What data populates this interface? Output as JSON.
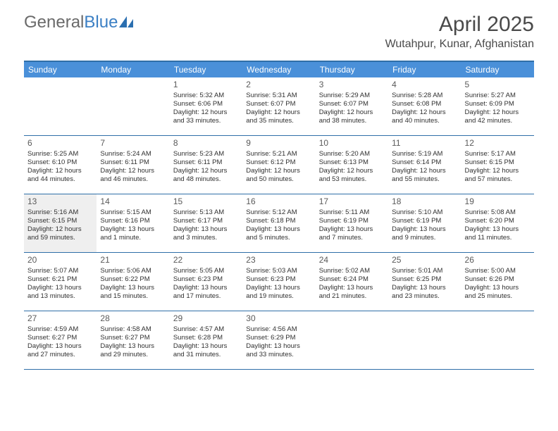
{
  "brand": {
    "part1": "General",
    "part2": "Blue"
  },
  "title": "April 2025",
  "location": "Wutahpur, Kunar, Afghanistan",
  "colors": {
    "header_bar": "#4a90d9",
    "border": "#2f6fa8",
    "shaded": "#efefef",
    "text": "#303030",
    "logo_gray": "#6a6a6a",
    "logo_blue": "#3b7fc4"
  },
  "weekdays": [
    "Sunday",
    "Monday",
    "Tuesday",
    "Wednesday",
    "Thursday",
    "Friday",
    "Saturday"
  ],
  "weeks": [
    [
      {
        "empty": true
      },
      {
        "empty": true
      },
      {
        "num": "1",
        "sunrise": "Sunrise: 5:32 AM",
        "sunset": "Sunset: 6:06 PM",
        "daylight": "Daylight: 12 hours and 33 minutes."
      },
      {
        "num": "2",
        "sunrise": "Sunrise: 5:31 AM",
        "sunset": "Sunset: 6:07 PM",
        "daylight": "Daylight: 12 hours and 35 minutes."
      },
      {
        "num": "3",
        "sunrise": "Sunrise: 5:29 AM",
        "sunset": "Sunset: 6:07 PM",
        "daylight": "Daylight: 12 hours and 38 minutes."
      },
      {
        "num": "4",
        "sunrise": "Sunrise: 5:28 AM",
        "sunset": "Sunset: 6:08 PM",
        "daylight": "Daylight: 12 hours and 40 minutes."
      },
      {
        "num": "5",
        "sunrise": "Sunrise: 5:27 AM",
        "sunset": "Sunset: 6:09 PM",
        "daylight": "Daylight: 12 hours and 42 minutes."
      }
    ],
    [
      {
        "num": "6",
        "sunrise": "Sunrise: 5:25 AM",
        "sunset": "Sunset: 6:10 PM",
        "daylight": "Daylight: 12 hours and 44 minutes."
      },
      {
        "num": "7",
        "sunrise": "Sunrise: 5:24 AM",
        "sunset": "Sunset: 6:11 PM",
        "daylight": "Daylight: 12 hours and 46 minutes."
      },
      {
        "num": "8",
        "sunrise": "Sunrise: 5:23 AM",
        "sunset": "Sunset: 6:11 PM",
        "daylight": "Daylight: 12 hours and 48 minutes."
      },
      {
        "num": "9",
        "sunrise": "Sunrise: 5:21 AM",
        "sunset": "Sunset: 6:12 PM",
        "daylight": "Daylight: 12 hours and 50 minutes."
      },
      {
        "num": "10",
        "sunrise": "Sunrise: 5:20 AM",
        "sunset": "Sunset: 6:13 PM",
        "daylight": "Daylight: 12 hours and 53 minutes."
      },
      {
        "num": "11",
        "sunrise": "Sunrise: 5:19 AM",
        "sunset": "Sunset: 6:14 PM",
        "daylight": "Daylight: 12 hours and 55 minutes."
      },
      {
        "num": "12",
        "sunrise": "Sunrise: 5:17 AM",
        "sunset": "Sunset: 6:15 PM",
        "daylight": "Daylight: 12 hours and 57 minutes."
      }
    ],
    [
      {
        "num": "13",
        "shaded": true,
        "sunrise": "Sunrise: 5:16 AM",
        "sunset": "Sunset: 6:15 PM",
        "daylight": "Daylight: 12 hours and 59 minutes."
      },
      {
        "num": "14",
        "sunrise": "Sunrise: 5:15 AM",
        "sunset": "Sunset: 6:16 PM",
        "daylight": "Daylight: 13 hours and 1 minute."
      },
      {
        "num": "15",
        "sunrise": "Sunrise: 5:13 AM",
        "sunset": "Sunset: 6:17 PM",
        "daylight": "Daylight: 13 hours and 3 minutes."
      },
      {
        "num": "16",
        "sunrise": "Sunrise: 5:12 AM",
        "sunset": "Sunset: 6:18 PM",
        "daylight": "Daylight: 13 hours and 5 minutes."
      },
      {
        "num": "17",
        "sunrise": "Sunrise: 5:11 AM",
        "sunset": "Sunset: 6:19 PM",
        "daylight": "Daylight: 13 hours and 7 minutes."
      },
      {
        "num": "18",
        "sunrise": "Sunrise: 5:10 AM",
        "sunset": "Sunset: 6:19 PM",
        "daylight": "Daylight: 13 hours and 9 minutes."
      },
      {
        "num": "19",
        "sunrise": "Sunrise: 5:08 AM",
        "sunset": "Sunset: 6:20 PM",
        "daylight": "Daylight: 13 hours and 11 minutes."
      }
    ],
    [
      {
        "num": "20",
        "sunrise": "Sunrise: 5:07 AM",
        "sunset": "Sunset: 6:21 PM",
        "daylight": "Daylight: 13 hours and 13 minutes."
      },
      {
        "num": "21",
        "sunrise": "Sunrise: 5:06 AM",
        "sunset": "Sunset: 6:22 PM",
        "daylight": "Daylight: 13 hours and 15 minutes."
      },
      {
        "num": "22",
        "sunrise": "Sunrise: 5:05 AM",
        "sunset": "Sunset: 6:23 PM",
        "daylight": "Daylight: 13 hours and 17 minutes."
      },
      {
        "num": "23",
        "sunrise": "Sunrise: 5:03 AM",
        "sunset": "Sunset: 6:23 PM",
        "daylight": "Daylight: 13 hours and 19 minutes."
      },
      {
        "num": "24",
        "sunrise": "Sunrise: 5:02 AM",
        "sunset": "Sunset: 6:24 PM",
        "daylight": "Daylight: 13 hours and 21 minutes."
      },
      {
        "num": "25",
        "sunrise": "Sunrise: 5:01 AM",
        "sunset": "Sunset: 6:25 PM",
        "daylight": "Daylight: 13 hours and 23 minutes."
      },
      {
        "num": "26",
        "sunrise": "Sunrise: 5:00 AM",
        "sunset": "Sunset: 6:26 PM",
        "daylight": "Daylight: 13 hours and 25 minutes."
      }
    ],
    [
      {
        "num": "27",
        "sunrise": "Sunrise: 4:59 AM",
        "sunset": "Sunset: 6:27 PM",
        "daylight": "Daylight: 13 hours and 27 minutes."
      },
      {
        "num": "28",
        "sunrise": "Sunrise: 4:58 AM",
        "sunset": "Sunset: 6:27 PM",
        "daylight": "Daylight: 13 hours and 29 minutes."
      },
      {
        "num": "29",
        "sunrise": "Sunrise: 4:57 AM",
        "sunset": "Sunset: 6:28 PM",
        "daylight": "Daylight: 13 hours and 31 minutes."
      },
      {
        "num": "30",
        "sunrise": "Sunrise: 4:56 AM",
        "sunset": "Sunset: 6:29 PM",
        "daylight": "Daylight: 13 hours and 33 minutes."
      },
      {
        "empty": true
      },
      {
        "empty": true
      },
      {
        "empty": true
      }
    ]
  ]
}
